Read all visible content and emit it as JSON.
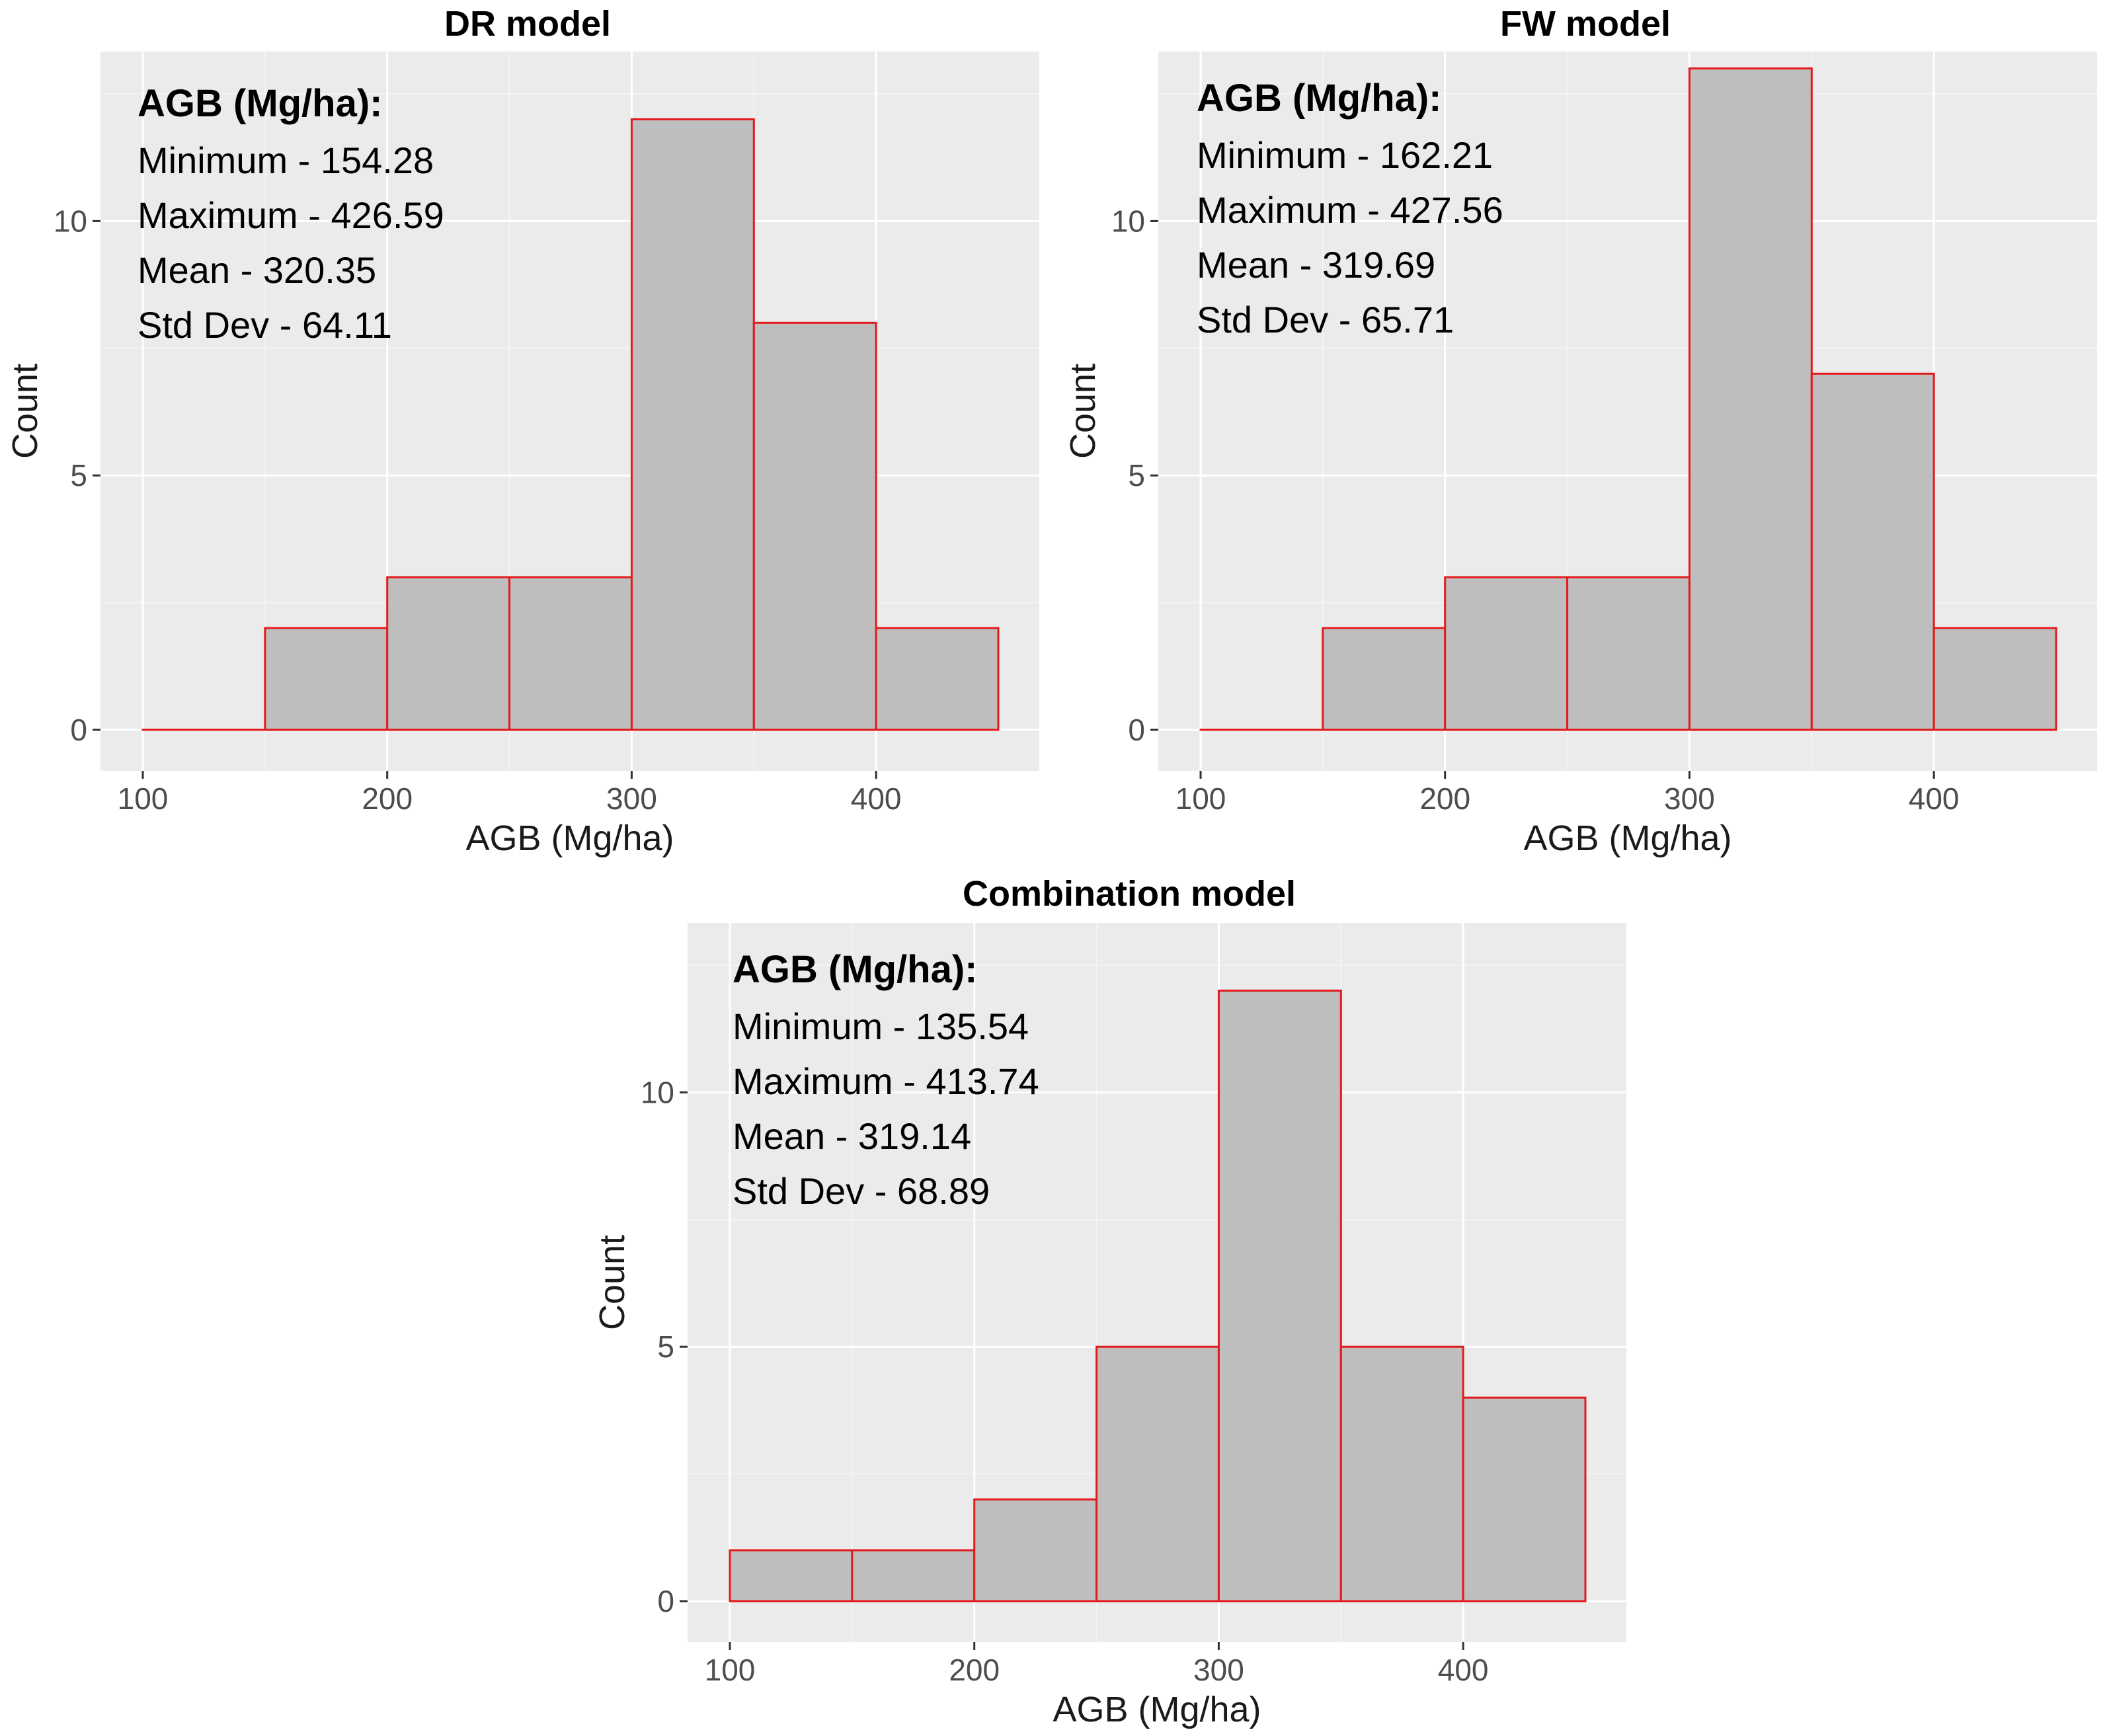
{
  "colors": {
    "bar_fill": "#bebebe",
    "bar_outline": "#e31a1c",
    "panel_background": "#ebebeb",
    "grid": "#ffffff"
  },
  "chart_data": [
    {
      "type": "bar",
      "title": "DR model",
      "xlabel": "AGB (Mg/ha)",
      "ylabel": "Count",
      "bin_edges": [
        100,
        150,
        200,
        250,
        300,
        350,
        400,
        450
      ],
      "counts": [
        0,
        2,
        3,
        3,
        12,
        8,
        2
      ],
      "xlim": [
        100,
        450
      ],
      "ylim": [
        0,
        13
      ],
      "x_ticks": [
        100,
        200,
        300,
        400
      ],
      "y_ticks": [
        0,
        5,
        10
      ],
      "grid": true,
      "stats": {
        "heading": "AGB (Mg/ha):",
        "lines": [
          "Minimum - 154.28",
          "Maximum - 426.59",
          "Mean - 320.35",
          "Std Dev - 64.11"
        ]
      }
    },
    {
      "type": "bar",
      "title": "FW model",
      "xlabel": "AGB (Mg/ha)",
      "ylabel": "Count",
      "bin_edges": [
        100,
        150,
        200,
        250,
        300,
        350,
        400,
        450
      ],
      "counts": [
        0,
        2,
        3,
        3,
        13,
        7,
        2
      ],
      "xlim": [
        100,
        450
      ],
      "ylim": [
        0,
        13
      ],
      "x_ticks": [
        100,
        200,
        300,
        400
      ],
      "y_ticks": [
        0,
        5,
        10
      ],
      "grid": true,
      "stats": {
        "heading": "AGB (Mg/ha):",
        "lines": [
          "Minimum - 162.21",
          "Maximum - 427.56",
          "Mean - 319.69",
          "Std Dev - 65.71"
        ]
      }
    },
    {
      "type": "bar",
      "title": "Combination model",
      "xlabel": "AGB (Mg/ha)",
      "ylabel": "Count",
      "bin_edges": [
        100,
        150,
        200,
        250,
        300,
        350,
        400,
        450
      ],
      "counts": [
        1,
        1,
        2,
        5,
        12,
        5,
        4
      ],
      "xlim": [
        100,
        450
      ],
      "ylim": [
        0,
        13
      ],
      "x_ticks": [
        100,
        200,
        300,
        400
      ],
      "y_ticks": [
        0,
        5,
        10
      ],
      "grid": true,
      "stats": {
        "heading": "AGB (Mg/ha):",
        "lines": [
          "Minimum - 135.54",
          "Maximum - 413.74",
          "Mean - 319.14",
          "Std Dev - 68.89"
        ]
      }
    }
  ]
}
